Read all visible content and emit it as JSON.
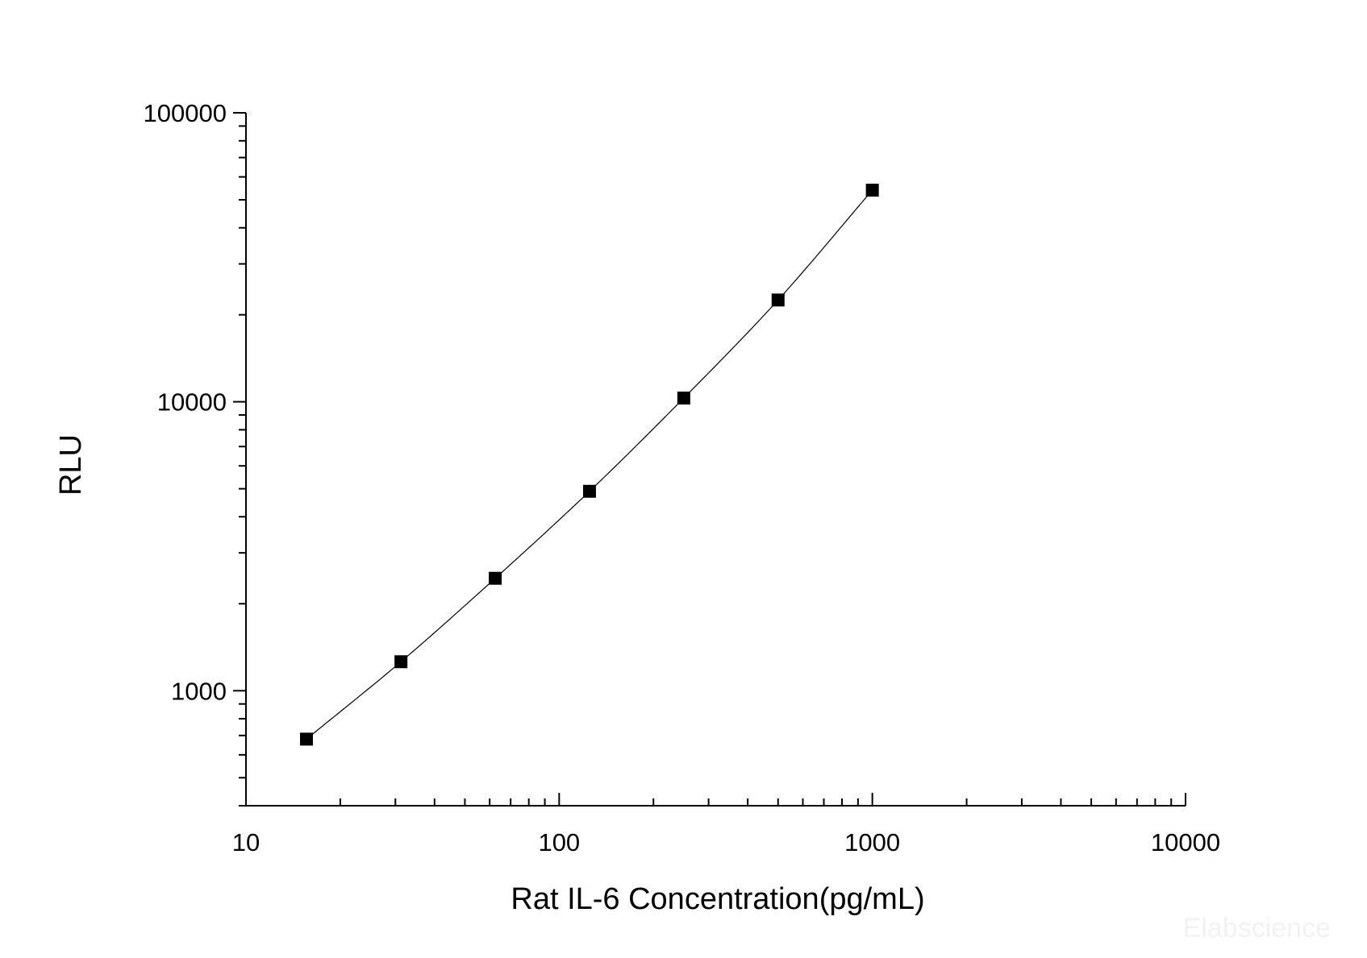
{
  "chart_data": {
    "type": "scatter",
    "title": "",
    "xlabel": "Rat IL-6 Concentration(pg/mL)",
    "ylabel": "RLU",
    "xscale": "log",
    "yscale": "log",
    "xlim": [
      10,
      10000
    ],
    "ylim": [
      400,
      100000
    ],
    "xticks": [
      10,
      100,
      1000,
      10000
    ],
    "xtick_labels": [
      "10",
      "100",
      "1000",
      "10000"
    ],
    "yticks": [
      1000,
      10000,
      100000
    ],
    "ytick_labels": [
      "1000",
      "10000",
      "100000"
    ],
    "grid": false,
    "legend": "none",
    "marker": "square",
    "fit_line": true,
    "series": [
      {
        "x": [
          15.6,
          31.25,
          62.5,
          125,
          250,
          500,
          1000
        ],
        "y": [
          680,
          1260,
          2450,
          4900,
          10300,
          22500,
          54000
        ]
      }
    ],
    "colors": {
      "marker": "#000000",
      "line": "#000000",
      "axis": "#000000"
    }
  },
  "watermark": "Elabscience"
}
